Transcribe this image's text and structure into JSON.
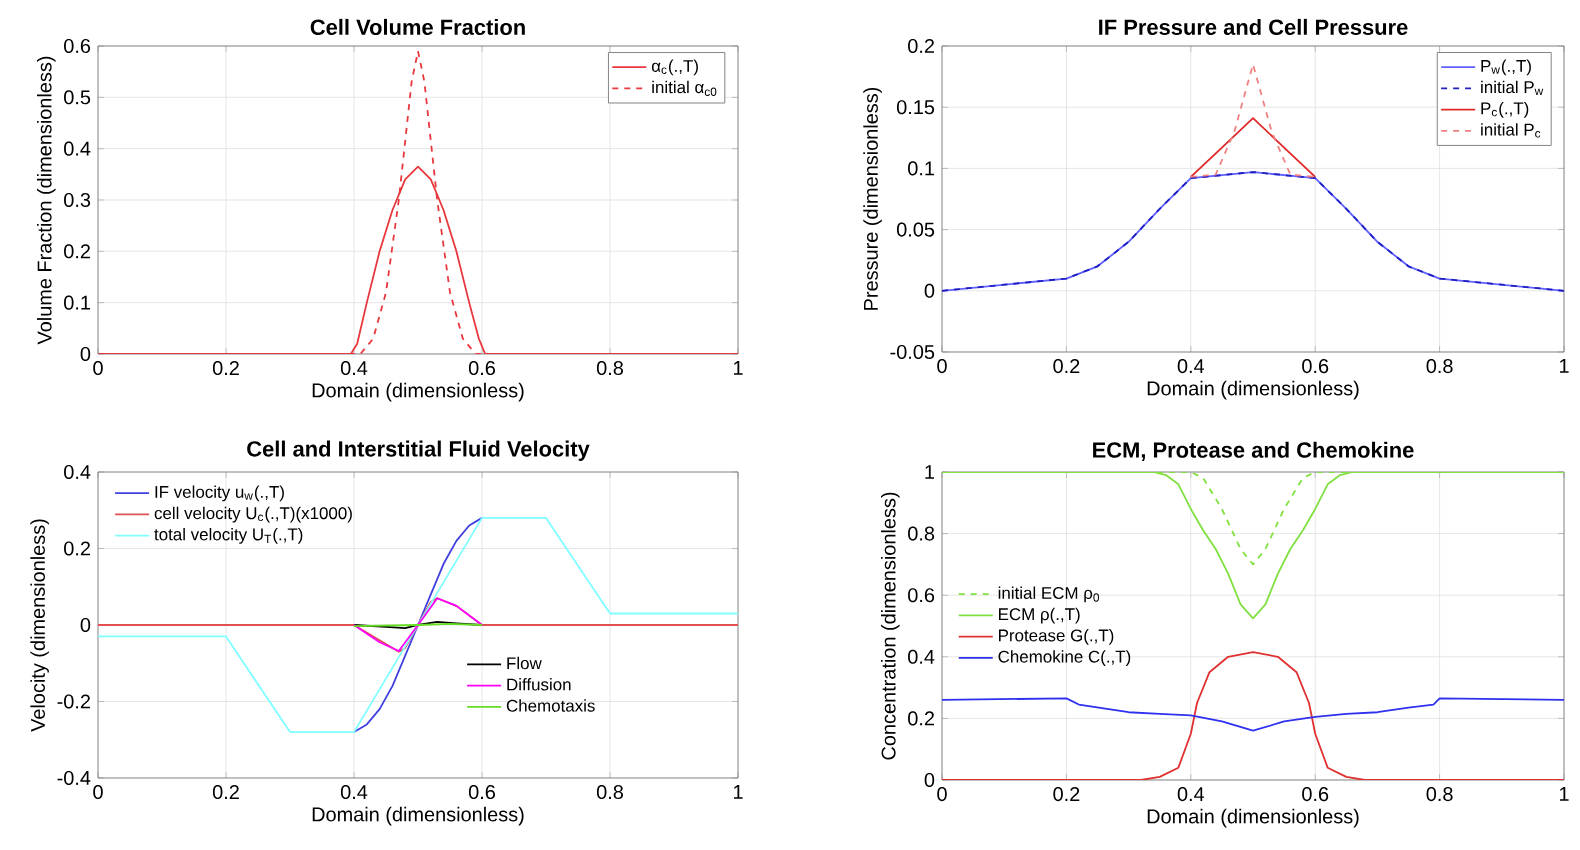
{
  "chart_data": [
    {
      "type": "line",
      "title": "Cell Volume Fraction",
      "xlabel": "Domain (dimensionless)",
      "ylabel": "Volume Fraction (dimensionless)",
      "xlim": [
        0,
        1
      ],
      "ylim": [
        0,
        0.6
      ],
      "xticks": [
        0,
        0.2,
        0.4,
        0.6,
        0.8,
        1
      ],
      "yticks": [
        0,
        0.1,
        0.2,
        0.3,
        0.4,
        0.5,
        0.6
      ],
      "grid": true,
      "legend": "top right",
      "series": [
        {
          "name": "α$_{c}$(.,T)",
          "color": "#e8383d",
          "line_style": "solid",
          "x": [
            0,
            0.395,
            0.405,
            0.42,
            0.44,
            0.46,
            0.48,
            0.5,
            0.52,
            0.54,
            0.56,
            0.58,
            0.595,
            0.605,
            1
          ],
          "values": [
            0,
            0,
            0.02,
            0.1,
            0.2,
            0.28,
            0.34,
            0.365,
            0.34,
            0.28,
            0.2,
            0.1,
            0.03,
            0,
            0
          ]
        },
        {
          "name": "initial α$_{c0}$",
          "color": "#e8383d",
          "line_style": "dashed",
          "x": [
            0,
            0.41,
            0.43,
            0.45,
            0.47,
            0.49,
            0.5,
            0.51,
            0.53,
            0.55,
            0.57,
            0.59,
            1
          ],
          "values": [
            0,
            0,
            0.03,
            0.12,
            0.3,
            0.53,
            0.59,
            0.53,
            0.3,
            0.12,
            0.03,
            0,
            0
          ]
        }
      ]
    },
    {
      "type": "line",
      "title": "IF Pressure and Cell Pressure",
      "xlabel": "Domain (dimensionless)",
      "ylabel": "Pressure (dimensionless)",
      "xlim": [
        0,
        1
      ],
      "ylim": [
        -0.05,
        0.2
      ],
      "xticks": [
        0,
        0.2,
        0.4,
        0.6,
        0.8,
        1
      ],
      "yticks": [
        -0.05,
        0,
        0.05,
        0.1,
        0.15,
        0.2
      ],
      "grid": true,
      "legend": "top right",
      "series": [
        {
          "name": "P$_{w}$(.,T)",
          "color": "#6060ff",
          "line_style": "solid",
          "x": [
            0,
            0.2,
            0.25,
            0.3,
            0.35,
            0.4,
            0.5,
            0.6,
            0.65,
            0.7,
            0.75,
            0.8,
            1
          ],
          "values": [
            0,
            0.01,
            0.02,
            0.04,
            0.067,
            0.092,
            0.097,
            0.092,
            0.067,
            0.04,
            0.02,
            0.01,
            0
          ]
        },
        {
          "name": "initial P$_{w}$",
          "color": "#2020c0",
          "line_style": "dashed",
          "x": [
            0,
            0.2,
            0.25,
            0.3,
            0.35,
            0.4,
            0.5,
            0.6,
            0.65,
            0.7,
            0.75,
            0.8,
            1
          ],
          "values": [
            0,
            0.01,
            0.02,
            0.04,
            0.067,
            0.092,
            0.097,
            0.092,
            0.067,
            0.04,
            0.02,
            0.01,
            0
          ]
        },
        {
          "name": "P$_{c}$(.,T)",
          "color": "#e02828",
          "line_style": "solid",
          "x": [
            0.4,
            0.45,
            0.5,
            0.55,
            0.6
          ],
          "values": [
            0.093,
            0.117,
            0.141,
            0.117,
            0.093
          ]
        },
        {
          "name": "initial P$_{c}$",
          "color": "#f08080",
          "line_style": "dashed",
          "x": [
            0.4,
            0.44,
            0.47,
            0.5,
            0.53,
            0.56,
            0.6
          ],
          "values": [
            0.093,
            0.095,
            0.13,
            0.185,
            0.13,
            0.095,
            0.093
          ]
        }
      ]
    },
    {
      "type": "line",
      "title": "Cell and Interstitial Fluid Velocity",
      "xlabel": "Domain (dimensionless)",
      "ylabel": "Velocity (dimensionless)",
      "xlim": [
        0,
        1
      ],
      "ylim": [
        -0.4,
        0.4
      ],
      "xticks": [
        0,
        0.2,
        0.4,
        0.6,
        0.8,
        1
      ],
      "yticks": [
        -0.4,
        -0.2,
        0,
        0.2,
        0.4
      ],
      "grid": true,
      "legend": "top left",
      "series": [
        {
          "name": "IF velocity u$_{w}$(.,T)",
          "color": "#4040e0",
          "line_style": "solid",
          "x": [
            0.4,
            0.42,
            0.44,
            0.46,
            0.48,
            0.5,
            0.52,
            0.54,
            0.56,
            0.58,
            0.6
          ],
          "values": [
            -0.28,
            -0.26,
            -0.22,
            -0.16,
            -0.08,
            0,
            0.08,
            0.16,
            0.22,
            0.26,
            0.28
          ]
        },
        {
          "name": "cell velocity U$_{c}$(.,T)(x1000)",
          "color": "#e05050",
          "line_style": "solid",
          "x": [
            0,
            0.4,
            0.44,
            0.47,
            0.48,
            0.5,
            0.52,
            0.53,
            0.56,
            0.6,
            1
          ],
          "values": [
            0,
            0,
            -0.04,
            -0.07,
            -0.06,
            0,
            0.06,
            0.07,
            0.05,
            0,
            0
          ]
        },
        {
          "name": "total velocity U$_{T}$(.,T)",
          "color": "#80ffff",
          "line_style": "solid",
          "x": [
            0,
            0.2,
            0.3,
            0.4,
            0.6,
            0.7,
            0.8,
            1
          ],
          "values": [
            -0.03,
            -0.03,
            -0.28,
            -0.28,
            0.28,
            0.28,
            0.03,
            0.03
          ]
        },
        {
          "name": "Flow",
          "color": "#000000",
          "line_style": "solid",
          "x": [
            0.4,
            0.45,
            0.48,
            0.5,
            0.53,
            0.56,
            0.6
          ],
          "values": [
            0,
            -0.005,
            -0.008,
            0,
            0.008,
            0.004,
            0
          ]
        },
        {
          "name": "Diffusion",
          "color": "#ff00ff",
          "line_style": "solid",
          "x": [
            0.4,
            0.44,
            0.47,
            0.5,
            0.53,
            0.56,
            0.6
          ],
          "values": [
            0,
            -0.045,
            -0.068,
            0,
            0.07,
            0.05,
            0
          ]
        },
        {
          "name": "Chemotaxis",
          "color": "#66dd22",
          "line_style": "solid",
          "x": [
            0.4,
            0.5,
            0.55,
            0.6
          ],
          "values": [
            -0.003,
            0,
            0.003,
            0
          ]
        }
      ]
    },
    {
      "type": "line",
      "title": "ECM, Protease and Chemokine",
      "xlabel": "Domain (dimensionless)",
      "ylabel": "Concentration (dimensionless)",
      "xlim": [
        0,
        1
      ],
      "ylim": [
        0,
        1
      ],
      "xticks": [
        0,
        0.2,
        0.4,
        0.6,
        0.8,
        1
      ],
      "yticks": [
        0,
        0.2,
        0.4,
        0.6,
        0.8,
        1
      ],
      "grid": true,
      "legend": "left",
      "series": [
        {
          "name": "initial ECM ρ$_{0}$",
          "color": "#80e040",
          "line_style": "dashed",
          "x": [
            0,
            0.4,
            0.42,
            0.45,
            0.48,
            0.5,
            0.52,
            0.55,
            0.58,
            0.6,
            1
          ],
          "values": [
            1,
            1,
            0.98,
            0.88,
            0.75,
            0.7,
            0.75,
            0.88,
            0.98,
            1,
            1
          ]
        },
        {
          "name": "ECM ρ(.,T)",
          "color": "#80e040",
          "line_style": "solid",
          "x": [
            0,
            0.34,
            0.36,
            0.38,
            0.4,
            0.42,
            0.44,
            0.46,
            0.48,
            0.5,
            0.52,
            0.54,
            0.56,
            0.58,
            0.6,
            0.62,
            0.64,
            0.66,
            1
          ],
          "values": [
            1,
            1,
            0.99,
            0.96,
            0.88,
            0.81,
            0.75,
            0.67,
            0.57,
            0.525,
            0.57,
            0.67,
            0.75,
            0.81,
            0.88,
            0.96,
            0.99,
            1,
            1
          ]
        },
        {
          "name": "Protease G(.,T)",
          "color": "#e03030",
          "line_style": "solid",
          "x": [
            0,
            0.32,
            0.35,
            0.38,
            0.4,
            0.41,
            0.43,
            0.46,
            0.5,
            0.54,
            0.57,
            0.59,
            0.6,
            0.62,
            0.65,
            0.68,
            1
          ],
          "values": [
            0,
            0,
            0.01,
            0.04,
            0.15,
            0.25,
            0.35,
            0.4,
            0.415,
            0.4,
            0.35,
            0.25,
            0.15,
            0.04,
            0.01,
            0,
            0
          ]
        },
        {
          "name": "Chemokine C(.,T)",
          "color": "#3030f0",
          "line_style": "solid",
          "x": [
            0,
            0.2,
            0.22,
            0.3,
            0.35,
            0.4,
            0.45,
            0.5,
            0.55,
            0.6,
            0.65,
            0.7,
            0.75,
            0.79,
            0.8,
            1
          ],
          "values": [
            0.26,
            0.265,
            0.245,
            0.22,
            0.215,
            0.21,
            0.19,
            0.16,
            0.19,
            0.205,
            0.215,
            0.22,
            0.235,
            0.245,
            0.265,
            0.26
          ]
        }
      ]
    }
  ]
}
